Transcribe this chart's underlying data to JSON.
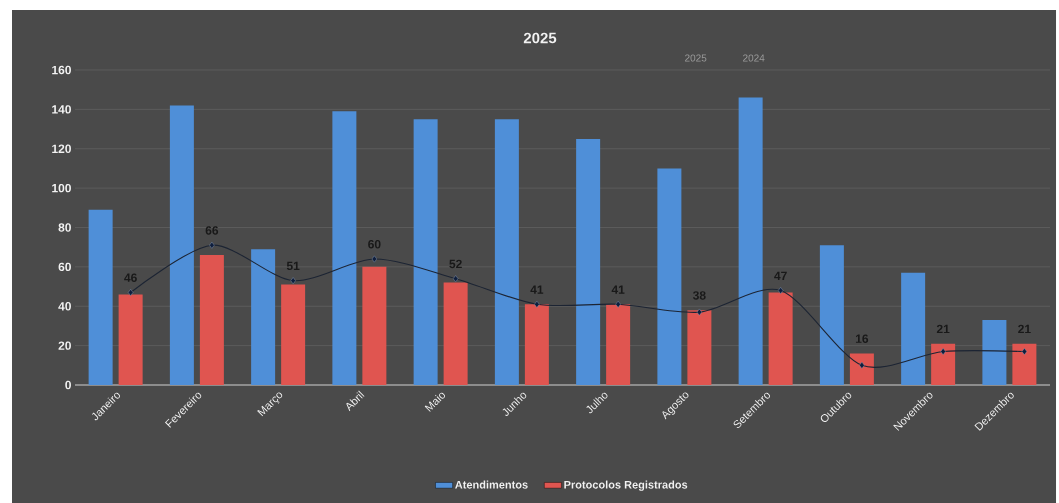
{
  "chart_data": {
    "type": "bar",
    "title": "2025",
    "categories": [
      "Janeiro",
      "Fevereiro",
      "Março",
      "Abril",
      "Maio",
      "Junho",
      "Julho",
      "Agosto",
      "Setembro",
      "Outubro",
      "Novembro",
      "Dezembro"
    ],
    "series": [
      {
        "name": "Atendimentos",
        "color": "#4f8fd8",
        "values": [
          89,
          142,
          69,
          139,
          135,
          135,
          125,
          110,
          146,
          71,
          57,
          33
        ]
      },
      {
        "name": "Protocolos Registrados",
        "color": "#e05550",
        "values": [
          46,
          66,
          51,
          60,
          52,
          41,
          41,
          38,
          47,
          16,
          21,
          21
        ],
        "value_labels": [
          "46",
          "66",
          "51",
          "60",
          "52",
          "41",
          "41",
          "38",
          "47",
          "16",
          "21",
          "21"
        ]
      },
      {
        "type": "line",
        "color": "#1c2433",
        "marker": "diamond",
        "values": [
          47,
          71,
          53,
          64,
          54,
          41,
          41,
          37,
          48,
          10,
          17,
          17
        ]
      }
    ],
    "ylim": [
      0,
      160
    ],
    "yticks": [
      0,
      20,
      40,
      60,
      80,
      100,
      120,
      140,
      160
    ],
    "grid": "y",
    "legend": "bottom",
    "annotations": [
      "2025",
      "2024"
    ]
  }
}
